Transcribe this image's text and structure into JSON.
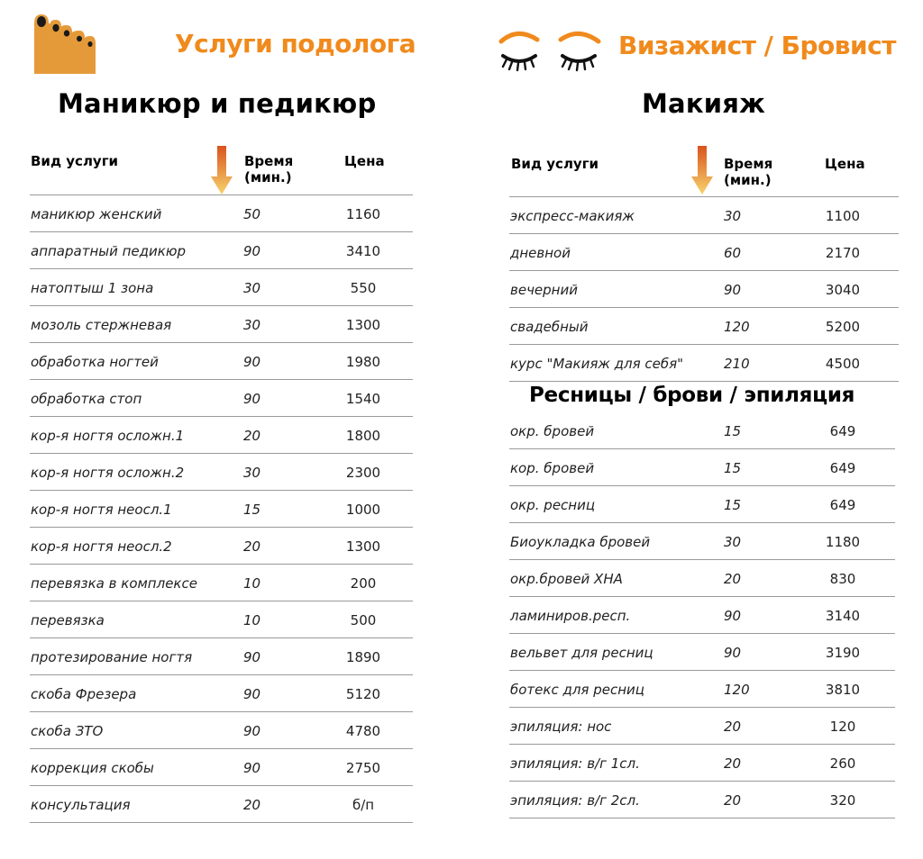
{
  "left": {
    "brand": "Услуги подолога",
    "title": "Маникюр и педикюр",
    "headers": {
      "service": "Вид услуги",
      "time_line1": "Время",
      "time_line2": "(мин.)",
      "price": "Цена"
    },
    "rows": [
      {
        "service": "маникюр женский",
        "time": "50",
        "price": "1160"
      },
      {
        "service": "аппаратный педикюр",
        "time": "90",
        "price": "3410"
      },
      {
        "service": "натоптыш 1 зона",
        "time": "30",
        "price": "550"
      },
      {
        "service": "мозоль стержневая",
        "time": "30",
        "price": "1300"
      },
      {
        "service": "обработка ногтей",
        "time": "90",
        "price": "1980"
      },
      {
        "service": "обработка стоп",
        "time": "90",
        "price": "1540"
      },
      {
        "service": "кор-я ногтя осложн.1",
        "time": "20",
        "price": "1800"
      },
      {
        "service": "кор-я ногтя осложн.2",
        "time": "30",
        "price": "2300"
      },
      {
        "service": "кор-я ногтя неосл.1",
        "time": "15",
        "price": "1000"
      },
      {
        "service": "кор-я ногтя неосл.2",
        "time": "20",
        "price": "1300"
      },
      {
        "service": "перевязка в комплексе",
        "time": "10",
        "price": "200"
      },
      {
        "service": "перевязка",
        "time": "10",
        "price": "500"
      },
      {
        "service": "протезирование ногтя",
        "time": "90",
        "price": "1890"
      },
      {
        "service": "скоба Фрезера",
        "time": "90",
        "price": "5120"
      },
      {
        "service": "скоба ЗТО",
        "time": "90",
        "price": "4780"
      },
      {
        "service": "коррекция скобы",
        "time": "90",
        "price": "2750"
      },
      {
        "service": "консультация",
        "time": "20",
        "price": "б/п"
      }
    ]
  },
  "right": {
    "brand": "Визажист / Бровист",
    "title": "Макияж",
    "headers": {
      "service": "Вид услуги",
      "time_line1": "Время",
      "time_line2": "(мин.)",
      "price": "Цена"
    },
    "makeup_rows": [
      {
        "service": "экспресс-макияж",
        "time": "30",
        "price": "1100"
      },
      {
        "service": "дневной",
        "time": "60",
        "price": "2170"
      },
      {
        "service": "вечерний",
        "time": "90",
        "price": "3040"
      },
      {
        "service": "свадебный",
        "time": "120",
        "price": "5200"
      },
      {
        "service": "курс \"Макияж для себя\"",
        "time": "210",
        "price": "4500"
      }
    ],
    "subtitle": "Ресницы / брови / эпиляция",
    "brow_rows": [
      {
        "service": "окр. бровей",
        "time": "15",
        "price": "649"
      },
      {
        "service": "кор. бровей",
        "time": "15",
        "price": "649"
      },
      {
        "service": "окр. ресниц",
        "time": "15",
        "price": "649"
      },
      {
        "service": "Биоукладка бровей",
        "time": "30",
        "price": "1180"
      },
      {
        "service": "окр.бровей ХНА",
        "time": "20",
        "price": "830"
      },
      {
        "service": "ламиниров.респ.",
        "time": "90",
        "price": "3140"
      },
      {
        "service": "вельвет для ресниц",
        "time": "90",
        "price": "3190"
      },
      {
        "service": "ботекс для ресниц",
        "time": "120",
        "price": "3810"
      },
      {
        "service": "эпиляция: нос",
        "time": "20",
        "price": "120"
      },
      {
        "service": "эпиляция: в/г 1сл.",
        "time": "20",
        "price": "260"
      },
      {
        "service": "эпиляция: в/г 2сл.",
        "time": "20",
        "price": "320"
      }
    ]
  },
  "colors": {
    "accent": "#f08a1c",
    "rule": "#9a9a9a"
  },
  "icons": {
    "left": "foot-icon",
    "right": "closed-eyes-icon",
    "sort": "arrow-down-icon"
  }
}
